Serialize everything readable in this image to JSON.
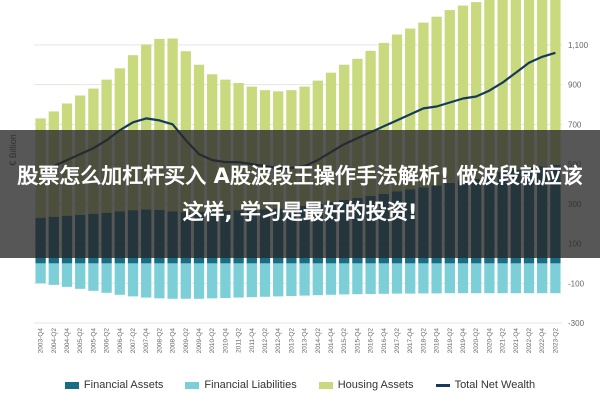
{
  "banner": {
    "text": "股票怎么加杠杆买入 A股波段王操作手法解析! 做波段就应该这样, 学习是最好的投资!"
  },
  "colors": {
    "financial_assets": "#1a6b84",
    "financial_liabilities": "#7ccfd6",
    "housing_assets": "#c9d97e",
    "total_net_wealth": "#173a5a",
    "grid": "#e5e5e5",
    "axis_text": "#666666"
  },
  "chart_data": {
    "type": "bar",
    "ylabel": "€ Billion",
    "ylim": [
      -300,
      1200
    ],
    "yticks": [
      -300,
      -100,
      100,
      300,
      500,
      700,
      900,
      1100
    ],
    "ytick_labels": [
      "-300",
      "-100",
      "100",
      "300",
      "500",
      "700",
      "900",
      "1,100"
    ],
    "grid": true,
    "legend_position": "bottom",
    "categories": [
      "2003-Q4",
      "2004-Q2",
      "2004-Q4",
      "2005-Q2",
      "2005-Q4",
      "2006-Q2",
      "2006-Q4",
      "2007-Q2",
      "2007-Q4",
      "2008-Q2",
      "2008-Q4",
      "2009-Q2",
      "2009-Q4",
      "2010-Q2",
      "2010-Q4",
      "2011-Q2",
      "2011-Q4",
      "2012-Q2",
      "2012-Q4",
      "2013-Q2",
      "2013-Q4",
      "2014-Q2",
      "2014-Q4",
      "2015-Q2",
      "2015-Q4",
      "2016-Q2",
      "2016-Q4",
      "2017-Q2",
      "2017-Q4",
      "2018-Q2",
      "2018-Q4",
      "2019-Q2",
      "2019-Q4",
      "2020-Q2",
      "2020-Q4",
      "2021-Q2",
      "2021-Q4",
      "2022-Q2",
      "2022-Q4",
      "2023-Q2"
    ],
    "series": [
      {
        "name": "Financial Assets",
        "type": "bar",
        "values": [
          230,
          235,
          240,
          245,
          250,
          255,
          262,
          268,
          272,
          270,
          262,
          258,
          260,
          262,
          265,
          268,
          270,
          272,
          276,
          282,
          290,
          300,
          310,
          320,
          330,
          340,
          350,
          362,
          372,
          382,
          392,
          405,
          418,
          425,
          440,
          460,
          472,
          480,
          488,
          495
        ]
      },
      {
        "name": "Financial Liabilities",
        "type": "bar",
        "values": [
          -100,
          -108,
          -118,
          -128,
          -138,
          -148,
          -158,
          -166,
          -172,
          -176,
          -178,
          -178,
          -178,
          -176,
          -174,
          -172,
          -170,
          -168,
          -166,
          -164,
          -162,
          -160,
          -158,
          -156,
          -155,
          -154,
          -153,
          -152,
          -152,
          -151,
          -151,
          -150,
          -150,
          -150,
          -150,
          -150,
          -150,
          -150,
          -150,
          -150
        ]
      },
      {
        "name": "Housing Assets",
        "type": "bar",
        "values": [
          500,
          530,
          565,
          600,
          630,
          670,
          720,
          780,
          830,
          860,
          870,
          810,
          740,
          690,
          660,
          640,
          620,
          600,
          590,
          590,
          600,
          620,
          650,
          680,
          700,
          730,
          760,
          790,
          810,
          830,
          850,
          870,
          880,
          890,
          910,
          940,
          980,
          1020,
          1060,
          1090
        ]
      },
      {
        "name": "Total Net Wealth",
        "type": "line",
        "values": [
          460,
          490,
          520,
          550,
          580,
          620,
          670,
          710,
          730,
          720,
          700,
          620,
          550,
          520,
          510,
          510,
          500,
          490,
          480,
          480,
          490,
          520,
          560,
          600,
          630,
          660,
          690,
          720,
          750,
          780,
          790,
          810,
          830,
          840,
          870,
          910,
          960,
          1010,
          1040,
          1060
        ]
      }
    ]
  }
}
